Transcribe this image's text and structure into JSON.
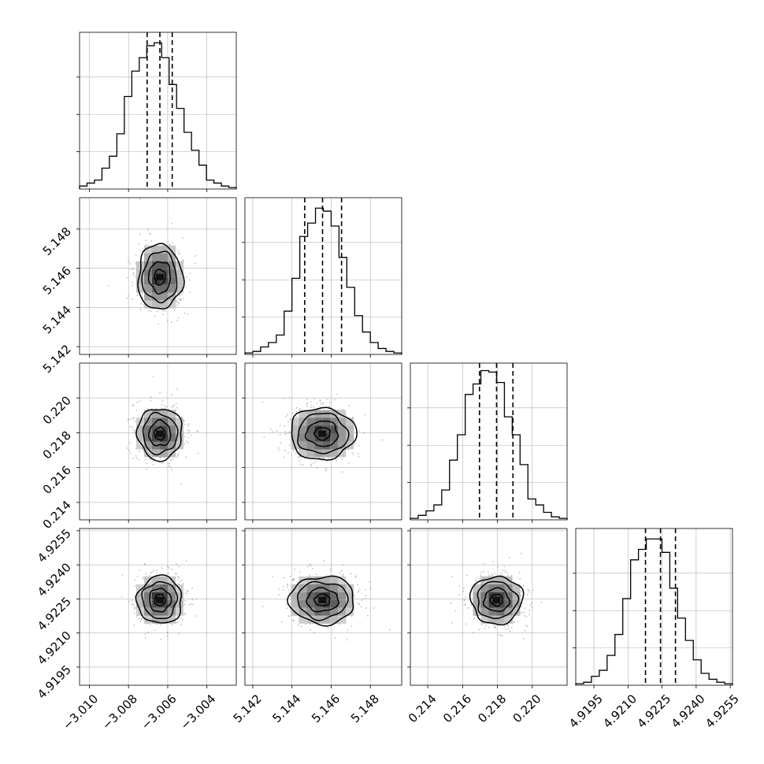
{
  "figure": {
    "background": "#ffffff",
    "axis_color": "#000000",
    "grid_color": "#b0b0b0"
  },
  "chart_data": {
    "type": "corner",
    "title": "",
    "params": [
      {
        "range": [
          -3.0105,
          -3.0025
        ],
        "ticks": [
          -3.01,
          -3.008,
          -3.006,
          -3.004
        ],
        "tick_labels": [
          "−3.010",
          "−3.008",
          "−3.006",
          "−3.004"
        ],
        "mean": -3.0064,
        "sd": 0.00065,
        "quantiles": [
          -3.00705,
          -3.0064,
          -3.00577
        ]
      },
      {
        "range": [
          5.1416,
          5.1496
        ],
        "ticks": [
          5.142,
          5.144,
          5.146,
          5.148
        ],
        "tick_labels": [
          "5.142",
          "5.144",
          "5.146",
          "5.148"
        ],
        "mean": 5.14555,
        "sd": 0.00095,
        "quantiles": [
          5.14465,
          5.14556,
          5.14653
        ]
      },
      {
        "range": [
          0.213,
          0.222
        ],
        "ticks": [
          0.214,
          0.216,
          0.218,
          0.22
        ],
        "tick_labels": [
          "0.214",
          "0.216",
          "0.218",
          "0.220"
        ],
        "mean": 0.21795,
        "sd": 0.00085,
        "quantiles": [
          0.21697,
          0.21795,
          0.21889
        ]
      },
      {
        "range": [
          4.9187,
          4.9256
        ],
        "ticks": [
          4.9195,
          4.921,
          4.9225,
          4.924,
          4.9255
        ],
        "tick_labels": [
          "4.9195",
          "4.9210",
          "4.9225",
          "4.9240",
          "4.9255"
        ],
        "mean": 4.92245,
        "sd": 0.0006,
        "quantiles": [
          4.92177,
          4.92243,
          4.92309
        ]
      }
    ],
    "histograms": [
      {
        "counts": [
          2,
          4,
          6,
          14,
          22,
          37,
          62,
          79,
          88,
          96,
          98,
          88,
          70,
          54,
          38,
          26,
          16,
          6,
          4,
          2,
          1
        ]
      },
      {
        "counts": [
          1,
          2,
          5,
          8,
          13,
          29,
          51,
          79,
          88,
          98,
          96,
          86,
          65,
          45,
          26,
          15,
          8,
          4,
          2,
          1
        ]
      },
      {
        "counts": [
          1,
          3,
          6,
          10,
          20,
          40,
          57,
          84,
          91,
          100,
          99,
          92,
          69,
          57,
          37,
          14,
          10,
          5,
          2,
          1
        ]
      },
      {
        "counts": [
          1,
          2,
          6,
          10,
          20,
          34,
          58,
          84,
          91,
          98,
          98,
          89,
          65,
          45,
          30,
          17,
          8,
          4,
          2,
          1
        ]
      }
    ],
    "grid": true,
    "legend": "none"
  }
}
